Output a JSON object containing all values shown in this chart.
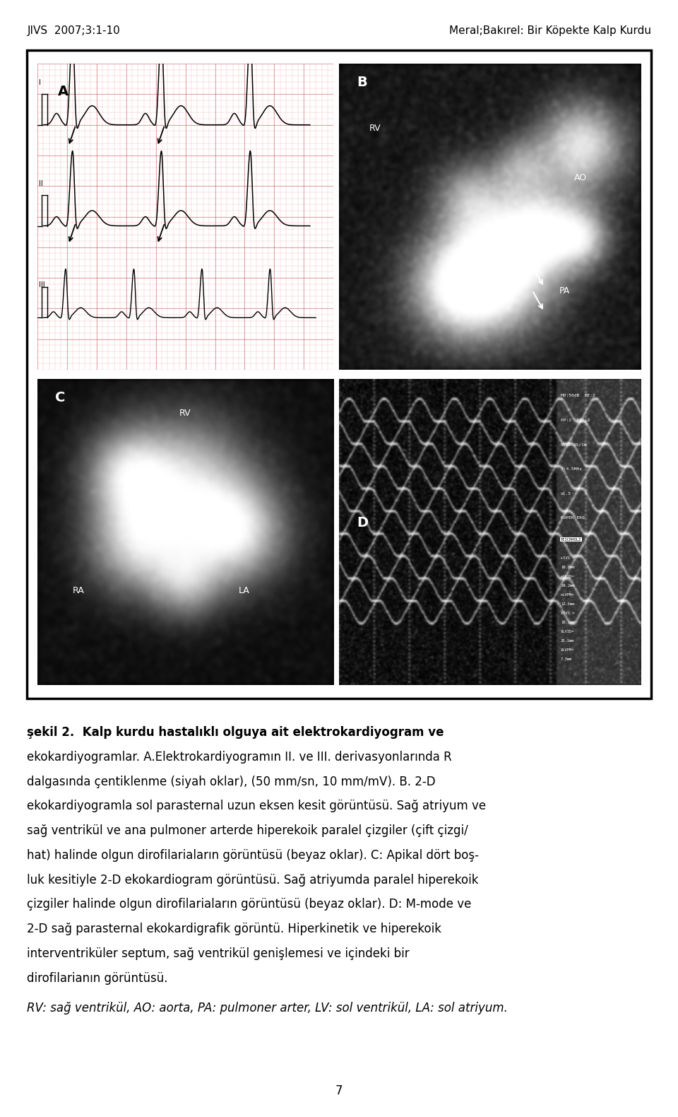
{
  "header_left": "JIVS  2007;3:1-10",
  "header_right": "Meral;Bakırel: Bir Köpekte Kalp Kurdu",
  "header_fontsize": 11,
  "page_bg": "#ffffff",
  "border_color": "#000000",
  "caption_lines": [
    "şekil 2.  Kalp kurdu hastalıklı olguya ait elektrokardiyogram ve",
    "ekokardiyogramlar. A.Elektrokardiyogramın II. ve III. derivasyonlarında R",
    "dalgasında çentiklenme (siyah oklar), (50 mm/sn, 10 mm/mV). B. 2-D",
    "ekokardiyogramla sol parasternal uzun eksen kesit görüntüsü. Sağ atriyum ve",
    "sağ ventrikül ve ana pulmoner arterde hiperekoik paralel çizgiler (çift çizgi/",
    "hat) halinde olgun dirofilariaların görüntüsü (beyaz oklar). C: Apikal dört boş-",
    "luk kesitiyle 2-D ekokardiogram görüntüsü. Sağ atriyumda paralel hiperekoik",
    "çizgiler halinde olgun dirofilariaların görüntüsü (beyaz oklar). D: M-mode ve",
    "2-D sağ parasternal ekokardigrafik görüntü. Hiperkinetik ve hiperekoik",
    "interventriküler septum, sağ ventrikül genişlemesi ve içindeki bir",
    "dirofilarianın görüntüsü."
  ],
  "caption_italic": "RV: sağ ventrikül, AO: aorta, PA: pulmoner arter, LV: sol ventrikül, LA: sol atriyum.",
  "caption_fontsize": 12,
  "footer_text": "7",
  "footer_fontsize": 12
}
